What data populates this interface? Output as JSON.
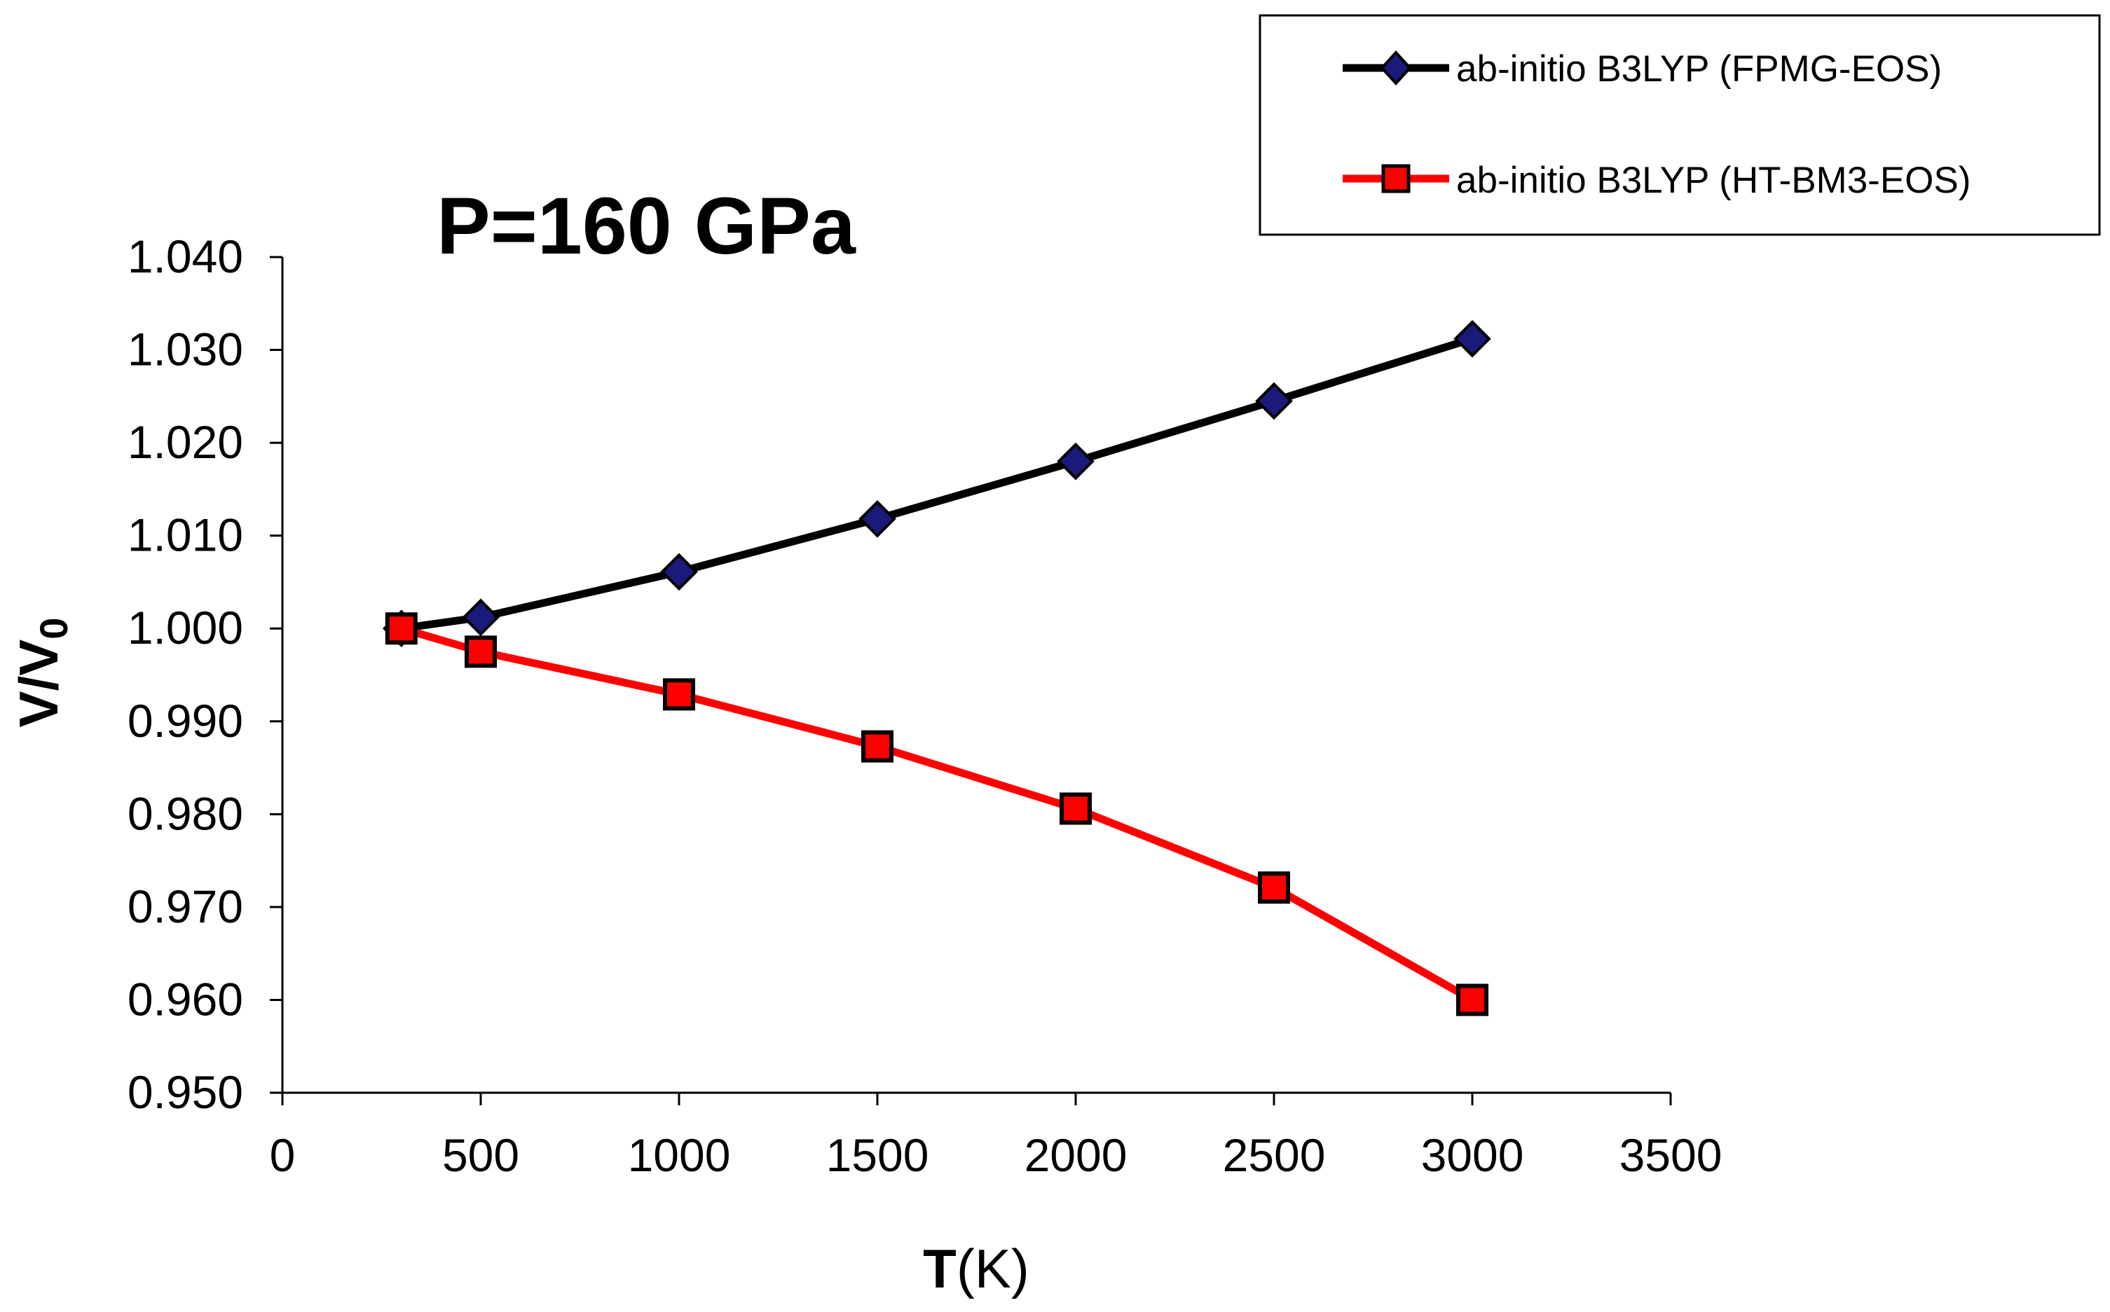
{
  "chart_data": {
    "type": "line",
    "title": "P=160 GPa",
    "xlabel_bold": "T",
    "xlabel_rest": "(K)",
    "ylabel_main": "V/V",
    "ylabel_sub": "0",
    "xlim": [
      0,
      3500
    ],
    "ylim": [
      0.95,
      1.04
    ],
    "x_ticks": [
      "0",
      "500",
      "1000",
      "1500",
      "2000",
      "2500",
      "3000",
      "3500"
    ],
    "x_tick_values": [
      0,
      500,
      1000,
      1500,
      2000,
      2500,
      3000,
      3500
    ],
    "y_ticks": [
      "0.950",
      "0.960",
      "0.970",
      "0.980",
      "0.990",
      "1.000",
      "1.010",
      "1.020",
      "1.030",
      "1.040"
    ],
    "y_tick_values": [
      0.95,
      0.96,
      0.97,
      0.98,
      0.99,
      1.0,
      1.01,
      1.02,
      1.03,
      1.04
    ],
    "grid": false,
    "legend_position": "top-right",
    "series": [
      {
        "name": "ab-initio B3LYP (FPMG-EOS)",
        "marker": "diamond",
        "line_color": "#000000",
        "marker_color": "#1a1a7a",
        "x": [
          300,
          500,
          1000,
          1500,
          2000,
          2500,
          3000
        ],
        "y": [
          1.0,
          1.0012,
          1.0061,
          1.0118,
          1.018,
          1.0245,
          1.0312
        ]
      },
      {
        "name": "ab-initio B3LYP (HT-BM3-EOS)",
        "marker": "square",
        "line_color": "#ff0000",
        "marker_color": "#ff0000",
        "x": [
          300,
          500,
          1000,
          1500,
          2000,
          2500,
          3000
        ],
        "y": [
          1.0,
          0.9975,
          0.9929,
          0.9873,
          0.9806,
          0.9721,
          0.96
        ]
      }
    ]
  }
}
